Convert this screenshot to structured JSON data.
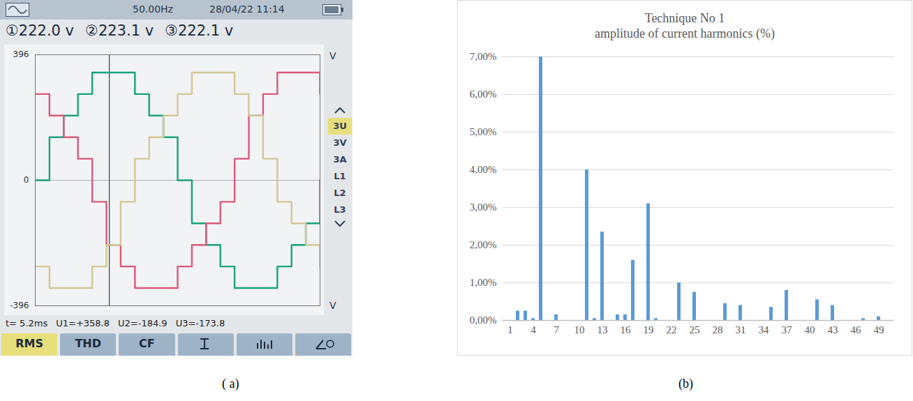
{
  "chart_data": [
    {
      "type": "line",
      "x": [
        0,
        1,
        2,
        3,
        4,
        5,
        6,
        7,
        8,
        9,
        10,
        11,
        12,
        13,
        14,
        15,
        16,
        17,
        18,
        19,
        20
      ],
      "xlim": [
        0,
        20
      ],
      "ylim": [
        -396,
        396
      ],
      "yticks": [
        -396,
        0,
        396
      ],
      "tick_labels": "y",
      "grid": true,
      "cursor": 5.2,
      "series": [
        {
          "color": "#17a37c",
          "values": [
            0,
            136,
            204,
            272,
            340,
            340,
            340,
            272,
            204,
            136,
            0,
            -136,
            -204,
            -272,
            -340,
            -340,
            -340,
            -272,
            -204,
            -136,
            0
          ]
        },
        {
          "color": "#d9587c",
          "values": [
            272,
            204,
            136,
            68,
            -68,
            -204,
            -272,
            -340,
            -340,
            -340,
            -272,
            -204,
            -136,
            -68,
            68,
            204,
            272,
            340,
            340,
            340,
            272
          ]
        },
        {
          "color": "#d2c796",
          "values": [
            -272,
            -340,
            -340,
            -340,
            -272,
            -204,
            -68,
            68,
            136,
            204,
            272,
            340,
            340,
            340,
            272,
            204,
            68,
            -68,
            -136,
            -204,
            -272
          ]
        }
      ]
    },
    {
      "type": "bar",
      "title": "Technique No 1",
      "subtitle": "amplitude of current harmonics (%)",
      "categories": [
        "1",
        null,
        null,
        "4",
        null,
        null,
        "7",
        null,
        null,
        "10",
        null,
        null,
        "13",
        null,
        null,
        "16",
        null,
        null,
        "19",
        null,
        null,
        "22",
        null,
        null,
        "25",
        null,
        null,
        "28",
        null,
        null,
        "31",
        null,
        null,
        "34",
        null,
        null,
        "37",
        null,
        null,
        "40",
        null,
        null,
        "43",
        null,
        null,
        "46",
        null,
        null,
        "49",
        null
      ],
      "values": [
        0,
        0.25,
        0.25,
        0.05,
        7.0,
        0,
        0.15,
        0,
        0,
        0,
        4.0,
        0.05,
        2.35,
        0,
        0.15,
        0.15,
        1.6,
        0,
        3.1,
        0.05,
        0,
        0,
        1.0,
        0,
        0.75,
        0,
        0,
        0,
        0.45,
        0,
        0.4,
        0,
        0,
        0,
        0.35,
        0,
        0.8,
        0,
        0,
        0,
        0.55,
        0,
        0.4,
        0,
        0,
        0,
        0.05,
        0,
        0.1,
        0
      ],
      "color": "#5b9bd5",
      "ylim": [
        0,
        7
      ],
      "yticks": [
        {
          "value": 0,
          "label": "0,00%"
        },
        {
          "value": 1,
          "label": "1,00%"
        },
        {
          "value": 2,
          "label": "2,00%"
        },
        {
          "value": 3,
          "label": "3,00%"
        },
        {
          "value": 4,
          "label": "4,00%"
        },
        {
          "value": 5,
          "label": "5,00%"
        },
        {
          "value": 6,
          "label": "6,00%"
        },
        {
          "value": 7,
          "label": "7,00%"
        }
      ],
      "grid": true
    }
  ],
  "screen": {
    "frequency": "50.00Hz",
    "datetime": "28/04/22 11:14",
    "voltages": [
      "①222.0 v",
      "②223.1 v",
      "③222.1 v"
    ],
    "unit": "V",
    "readout": [
      "t= 5.2ms",
      "U1=+358.8",
      "U2=-184.9",
      "U3=-173.8"
    ],
    "menu": [
      "3U",
      "3V",
      "3A",
      "L1",
      "L2",
      "L3"
    ],
    "buttons": [
      "RMS",
      "THD",
      "CF"
    ]
  },
  "captions": [
    "( a)",
    "(b)"
  ]
}
